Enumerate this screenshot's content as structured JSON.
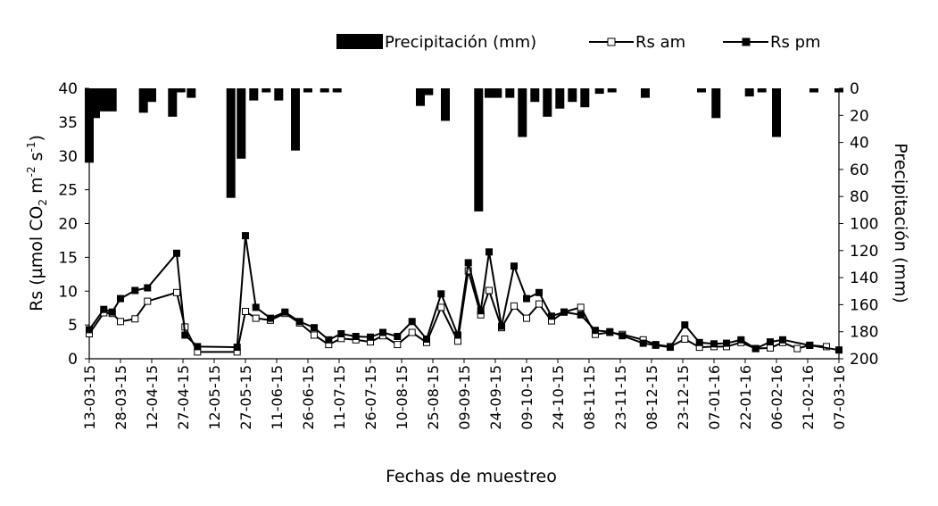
{
  "chart_data": {
    "type": "bar+line",
    "xlabel": "Fechas de muestreo",
    "ylabel_left_parts": [
      "Rs (µmol CO",
      "2",
      " m",
      "-2",
      " s",
      "-1",
      ")"
    ],
    "ylabel_right": "Precipitación (mm)",
    "ylim_left": [
      0,
      40
    ],
    "ylim_right": [
      200,
      0
    ],
    "left_ticks": [
      "0",
      "5",
      "10",
      "15",
      "20",
      "25",
      "30",
      "35",
      "40"
    ],
    "right_ticks": [
      "0",
      "20",
      "40",
      "60",
      "80",
      "100",
      "120",
      "140",
      "160",
      "180",
      "200"
    ],
    "x_dates": [
      "2015-03-13",
      "2015-03-20",
      "2015-03-24",
      "2015-03-28",
      "2015-04-04",
      "2015-04-10",
      "2015-04-14",
      "2015-04-24",
      "2015-04-28",
      "2015-05-04",
      "2015-05-23",
      "2015-05-27",
      "2015-06-01",
      "2015-06-08",
      "2015-06-15",
      "2015-06-22",
      "2015-06-29",
      "2015-07-06",
      "2015-07-12",
      "2015-07-19",
      "2015-07-26",
      "2015-08-01",
      "2015-08-08",
      "2015-08-15",
      "2015-08-22",
      "2015-08-29",
      "2015-09-06",
      "2015-09-11",
      "2015-09-17",
      "2015-09-21",
      "2015-09-27",
      "2015-10-03",
      "2015-10-09",
      "2015-10-15",
      "2015-10-21",
      "2015-10-27",
      "2015-11-04",
      "2015-11-11",
      "2015-11-18",
      "2015-11-24",
      "2015-12-04",
      "2015-12-10",
      "2015-12-17",
      "2015-12-24",
      "2015-12-31",
      "2016-01-07",
      "2016-01-13",
      "2016-01-20",
      "2016-01-27",
      "2016-02-03",
      "2016-02-09",
      "2016-02-16",
      "2016-02-22",
      "2016-03-01",
      "2016-03-07"
    ],
    "x_tick_labels": [
      "13-03-15",
      "28-03-15",
      "12-04-15",
      "27-04-15",
      "12-05-15",
      "27-05-15",
      "11-06-15",
      "26-06-15",
      "11-07-15",
      "26-07-15",
      "10-08-15",
      "25-08-15",
      "09-09-15",
      "24-09-15",
      "09-10-15",
      "24-10-15",
      "08-11-15",
      "23-11-15",
      "08-12-15",
      "23-12-15",
      "07-01-16",
      "22-01-16",
      "06-02-16",
      "21-02-16",
      "07-03-16"
    ],
    "x_tick_dates": [
      "2015-03-13",
      "2015-03-28",
      "2015-04-12",
      "2015-04-27",
      "2015-05-12",
      "2015-05-27",
      "2015-06-11",
      "2015-06-26",
      "2015-07-11",
      "2015-07-26",
      "2015-08-10",
      "2015-08-25",
      "2015-09-09",
      "2015-09-24",
      "2015-10-09",
      "2015-10-24",
      "2015-11-08",
      "2015-11-23",
      "2015-12-08",
      "2015-12-23",
      "2016-01-07",
      "2016-01-22",
      "2016-02-06",
      "2016-02-21",
      "2016-03-07"
    ],
    "series": [
      {
        "name": "Rs am",
        "values": [
          3.7,
          6.8,
          6.7,
          5.5,
          5.9,
          8.5,
          9.8,
          4.7,
          1.0,
          1.0,
          7.0,
          6.0,
          5.7,
          6.7,
          5.3,
          3.5,
          2.1,
          3.0,
          2.8,
          2.5,
          3.4,
          2.1,
          3.9,
          2.4,
          7.6,
          2.6,
          13.0,
          6.5,
          10.1,
          4.6,
          7.8,
          6.0,
          8.1,
          5.6,
          6.9,
          7.6,
          3.6,
          3.9,
          3.6,
          2.8,
          2.1,
          1.8,
          2.9,
          1.7,
          1.8,
          1.8,
          2.4,
          1.5,
          1.6,
          2.4,
          1.5,
          2.0,
          1.8
        ]
      },
      {
        "name": "Rs pm",
        "values": [
          4.3,
          7.3,
          6.9,
          8.9,
          10.1,
          10.5,
          15.6,
          3.5,
          1.8,
          1.7,
          18.2,
          7.6,
          6.0,
          6.9,
          5.5,
          4.6,
          2.8,
          3.7,
          3.3,
          3.2,
          3.9,
          3.3,
          5.5,
          2.9,
          9.6,
          3.5,
          14.2,
          7.1,
          15.8,
          4.8,
          13.7,
          8.9,
          9.8,
          6.3,
          6.9,
          6.5,
          4.2,
          4.0,
          3.4,
          2.3,
          2.0,
          1.7,
          5.0,
          2.4,
          2.2,
          2.3,
          2.8,
          1.5,
          2.5,
          2.8,
          2.0,
          1.3
        ]
      }
    ],
    "series_dates": {
      "Rs am": [
        "2015-03-13",
        "2015-03-20",
        "2015-03-24",
        "2015-03-28",
        "2015-04-04",
        "2015-04-10",
        "2015-04-24",
        "2015-04-28",
        "2015-05-04",
        "2015-05-23",
        "2015-05-27",
        "2015-06-01",
        "2015-06-08",
        "2015-06-15",
        "2015-06-22",
        "2015-06-29",
        "2015-07-06",
        "2015-07-12",
        "2015-07-19",
        "2015-07-26",
        "2015-08-01",
        "2015-08-08",
        "2015-08-15",
        "2015-08-22",
        "2015-08-29",
        "2015-09-06",
        "2015-09-11",
        "2015-09-17",
        "2015-09-21",
        "2015-09-27",
        "2015-10-03",
        "2015-10-09",
        "2015-10-15",
        "2015-10-21",
        "2015-10-27",
        "2015-11-04",
        "2015-11-11",
        "2015-11-18",
        "2015-11-24",
        "2015-12-04",
        "2015-12-10",
        "2015-12-17",
        "2015-12-24",
        "2015-12-31",
        "2016-01-07",
        "2016-01-13",
        "2016-01-20",
        "2016-01-27",
        "2016-02-03",
        "2016-02-09",
        "2016-02-16",
        "2016-02-22",
        "2016-03-01"
      ],
      "Rs pm": [
        "2015-03-13",
        "2015-03-20",
        "2015-03-24",
        "2015-03-28",
        "2015-04-04",
        "2015-04-10",
        "2015-04-24",
        "2015-04-28",
        "2015-05-04",
        "2015-05-23",
        "2015-05-27",
        "2015-06-01",
        "2015-06-08",
        "2015-06-15",
        "2015-06-22",
        "2015-06-29",
        "2015-07-06",
        "2015-07-12",
        "2015-07-19",
        "2015-07-26",
        "2015-08-01",
        "2015-08-08",
        "2015-08-15",
        "2015-08-22",
        "2015-08-29",
        "2015-09-06",
        "2015-09-11",
        "2015-09-17",
        "2015-09-21",
        "2015-09-27",
        "2015-10-03",
        "2015-10-09",
        "2015-10-15",
        "2015-10-21",
        "2015-10-27",
        "2015-11-04",
        "2015-11-11",
        "2015-11-18",
        "2015-11-24",
        "2015-12-04",
        "2015-12-10",
        "2015-12-17",
        "2015-12-24",
        "2015-12-31",
        "2016-01-07",
        "2016-01-13",
        "2016-01-20",
        "2016-01-27",
        "2016-02-03",
        "2016-02-09",
        "2016-02-22",
        "2016-03-07"
      ]
    },
    "precipitation": {
      "name": "Precipitación (mm)",
      "dates": [
        "2015-03-13",
        "2015-03-16",
        "2015-03-20",
        "2015-03-24",
        "2015-04-08",
        "2015-04-12",
        "2015-04-22",
        "2015-04-26",
        "2015-05-01",
        "2015-05-20",
        "2015-05-25",
        "2015-05-31",
        "2015-06-06",
        "2015-06-12",
        "2015-06-20",
        "2015-06-26",
        "2015-07-04",
        "2015-07-10",
        "2015-08-19",
        "2015-08-23",
        "2015-08-31",
        "2015-09-16",
        "2015-09-21",
        "2015-09-25",
        "2015-10-01",
        "2015-10-07",
        "2015-10-13",
        "2015-10-19",
        "2015-10-25",
        "2015-10-31",
        "2015-11-06",
        "2015-11-13",
        "2015-11-19",
        "2015-12-05",
        "2016-01-01",
        "2016-01-08",
        "2016-01-24",
        "2016-01-30",
        "2016-02-06",
        "2016-02-24",
        "2016-03-07"
      ],
      "values": [
        55,
        22,
        17,
        17,
        18,
        10,
        21,
        3,
        7,
        81,
        52,
        9,
        3,
        9,
        46,
        3,
        3,
        3,
        13,
        5,
        24,
        91,
        7,
        7,
        7,
        36,
        10,
        21,
        15,
        10,
        14,
        4,
        3,
        7,
        3,
        22,
        6,
        3,
        36,
        3,
        3
      ]
    },
    "legend": [
      {
        "label": "Precipitación (mm)",
        "symbol": "bar",
        "color": "#000000"
      },
      {
        "label": "Rs am",
        "symbol": "open-square",
        "color": "#000000"
      },
      {
        "label": "Rs pm",
        "symbol": "filled-square",
        "color": "#000000"
      }
    ],
    "legend_position": "top-right",
    "grid": false
  }
}
